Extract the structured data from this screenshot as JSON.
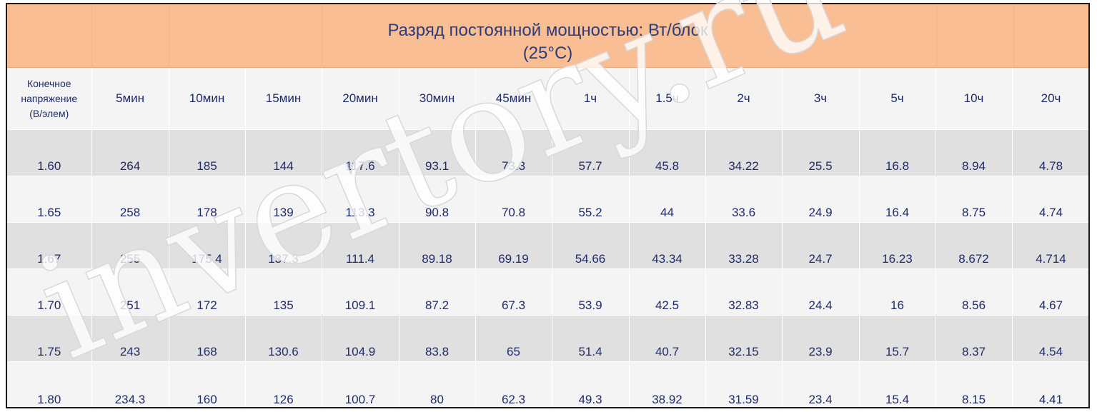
{
  "header": {
    "title_line1": "Разряд постоянной мощностью: Вт/блок",
    "title_line2": "(25°C)"
  },
  "table": {
    "corner_label": [
      "Конечное",
      "напряжение",
      "(В/элем)"
    ],
    "columns": [
      "5мин",
      "10мин",
      "15мин",
      "20мин",
      "30мин",
      "45мин",
      "1ч",
      "1.5ч",
      "2ч",
      "3ч",
      "5ч",
      "10ч",
      "20ч"
    ],
    "rows": [
      {
        "voltage": "1.60",
        "values": [
          "264",
          "185",
          "144",
          "117.6",
          "93.1",
          "73.3",
          "57.7",
          "45.8",
          "34.22",
          "25.5",
          "16.8",
          "8.94",
          "4.78"
        ]
      },
      {
        "voltage": "1.65",
        "values": [
          "258",
          "178",
          "139",
          "113.3",
          "90.8",
          "70.8",
          "55.2",
          "44",
          "33.6",
          "24.9",
          "16.4",
          "8.75",
          "4.74"
        ]
      },
      {
        "voltage": "1.67",
        "values": [
          "255",
          "175.4",
          "137.3",
          "111.4",
          "89.18",
          "69.19",
          "54.66",
          "43.34",
          "33.28",
          "24.7",
          "16.23",
          "8.672",
          "4.714"
        ]
      },
      {
        "voltage": "1.70",
        "values": [
          "251",
          "172",
          "135",
          "109.1",
          "87.2",
          "67.3",
          "53.9",
          "42.5",
          "32.83",
          "24.4",
          "16",
          "8.56",
          "4.67"
        ]
      },
      {
        "voltage": "1.75",
        "values": [
          "243",
          "168",
          "130.6",
          "104.9",
          "83.8",
          "65",
          "51.4",
          "40.7",
          "32.15",
          "23.9",
          "15.7",
          "8.37",
          "4.54"
        ]
      },
      {
        "voltage": "1.80",
        "values": [
          "234.3",
          "160",
          "126",
          "100.7",
          "80",
          "62.3",
          "49.3",
          "38.92",
          "31.59",
          "23.4",
          "15.4",
          "8.15",
          "4.41"
        ]
      }
    ]
  },
  "watermark": "invertory.ru",
  "colors": {
    "header_bg": "#f9be93",
    "text": "#1f2a6b",
    "title_text": "#2b3d7c",
    "row_gray": "#e0e0e0",
    "row_light": "#f4f4f4"
  }
}
